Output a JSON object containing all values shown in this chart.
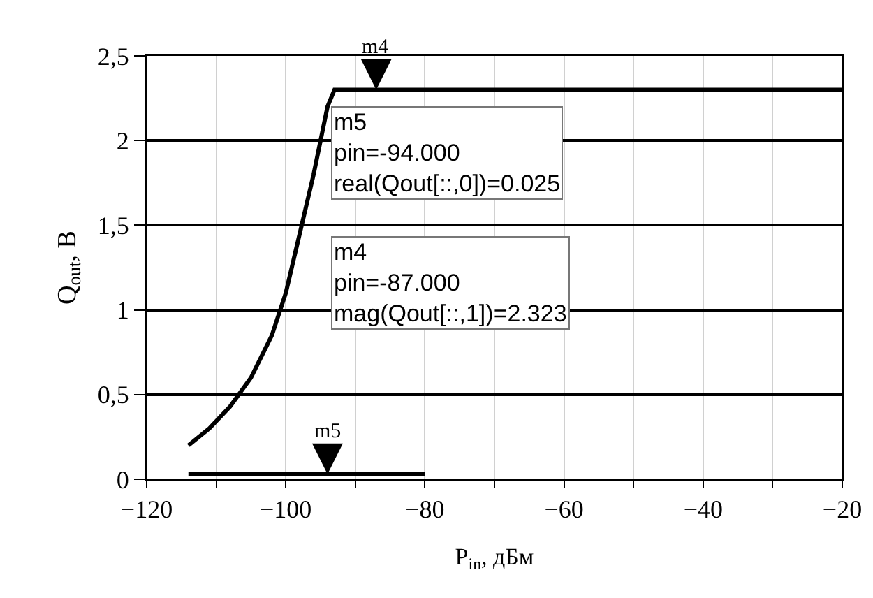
{
  "chart_data": {
    "type": "line",
    "xlabel": "P$_{in}$, дБм",
    "ylabel": "Q$_{out}$, В",
    "xlim": [
      -120,
      -20
    ],
    "xticks": [
      {
        "value": -120,
        "label": "−120"
      },
      {
        "value": -110,
        "label": null
      },
      {
        "value": -100,
        "label": "−100"
      },
      {
        "value": -90,
        "label": null
      },
      {
        "value": -80,
        "label": "−80"
      },
      {
        "value": -70,
        "label": null
      },
      {
        "value": -60,
        "label": "−60"
      },
      {
        "value": -50,
        "label": null
      },
      {
        "value": -40,
        "label": "−40"
      },
      {
        "value": -30,
        "label": null
      },
      {
        "value": -20,
        "label": "−20"
      }
    ],
    "ylim": [
      0,
      2.5
    ],
    "yticks": [
      0,
      {
        "value": 0.5,
        "label": "0,5"
      },
      1,
      {
        "value": 1.5,
        "label": "1,5"
      },
      2,
      {
        "value": 2.5,
        "label": "2,5"
      }
    ],
    "grid": true,
    "marker": "none",
    "line_style": "solid",
    "series": [
      {
        "color": "#000000",
        "x": [
          -114,
          -111,
          -108,
          -105,
          -102,
          -100,
          -98,
          -96,
          -95,
          -94,
          -93,
          -87,
          -20
        ],
        "values": [
          0.2,
          0.3,
          0.43,
          0.6,
          0.85,
          1.1,
          1.45,
          1.8,
          2.0,
          2.2,
          2.3,
          2.3,
          2.3
        ]
      },
      {
        "color": "#000000",
        "x": [
          -114,
          -94,
          -80
        ],
        "values": [
          0.03,
          0.03,
          0.03
        ]
      }
    ],
    "annotations": [
      {
        "text": "m4",
        "x": -87,
        "y": 2.3
      },
      {
        "text": "m5",
        "x": -94,
        "y": 0.03
      },
      "m5\npin=-94.000\nreal(Qout[::,0])=0.025",
      "m4\npin=-87.000\nmag(Qout[::,1])=2.323"
    ]
  }
}
